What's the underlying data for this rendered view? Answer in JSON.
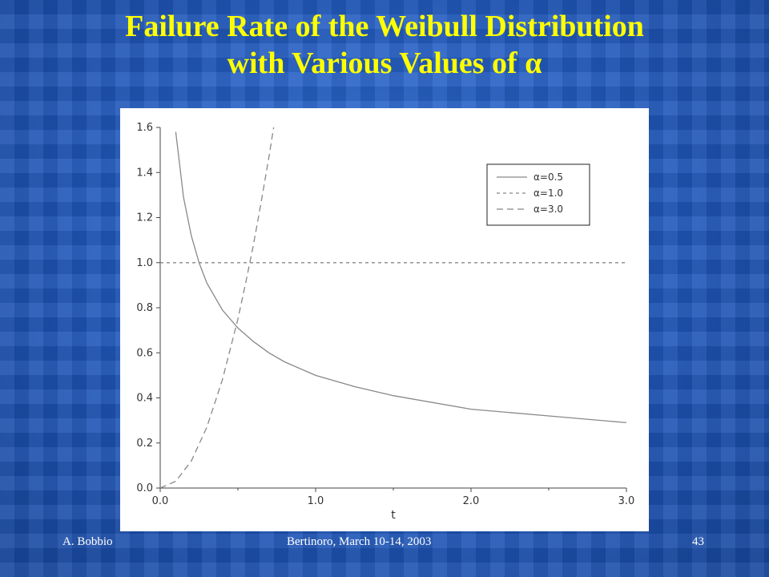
{
  "slide": {
    "title_line1": "Failure Rate of the Weibull Distribution",
    "title_line2": "with Various Values of α",
    "footer_left": "A. Bobbio",
    "footer_center": "Bertinoro,  March 10-14, 2003",
    "page_number": "43"
  },
  "chart_data": {
    "type": "line",
    "title": "",
    "xlabel": "t",
    "ylabel": "",
    "xlim": [
      0,
      3.0
    ],
    "ylim": [
      0,
      1.6
    ],
    "x_ticks": [
      "0.0",
      "1.0",
      "2.0",
      "3.0"
    ],
    "y_ticks": [
      "0.0",
      "0.2",
      "0.4",
      "0.6",
      "0.8",
      "1.0",
      "1.2",
      "1.4",
      "1.6"
    ],
    "legend_position": "top-right",
    "grid": false,
    "series": [
      {
        "name": "α=0.5",
        "style": "solid",
        "x": [
          0.1,
          0.15,
          0.2,
          0.25,
          0.3,
          0.4,
          0.5,
          0.6,
          0.7,
          0.8,
          1.0,
          1.25,
          1.5,
          2.0,
          2.5,
          3.0
        ],
        "values": [
          1.58,
          1.29,
          1.12,
          1.0,
          0.91,
          0.79,
          0.71,
          0.65,
          0.6,
          0.56,
          0.5,
          0.45,
          0.41,
          0.35,
          0.32,
          0.29
        ]
      },
      {
        "name": "α=1.0",
        "style": "dotted",
        "x": [
          0.0,
          3.0
        ],
        "values": [
          1.0,
          1.0
        ]
      },
      {
        "name": "α=3.0",
        "style": "dashed",
        "x": [
          0.0,
          0.1,
          0.2,
          0.3,
          0.4,
          0.5,
          0.55,
          0.6,
          0.65,
          0.7,
          0.73
        ],
        "values": [
          0.0,
          0.03,
          0.12,
          0.27,
          0.48,
          0.75,
          0.91,
          1.08,
          1.27,
          1.47,
          1.6
        ]
      }
    ]
  }
}
